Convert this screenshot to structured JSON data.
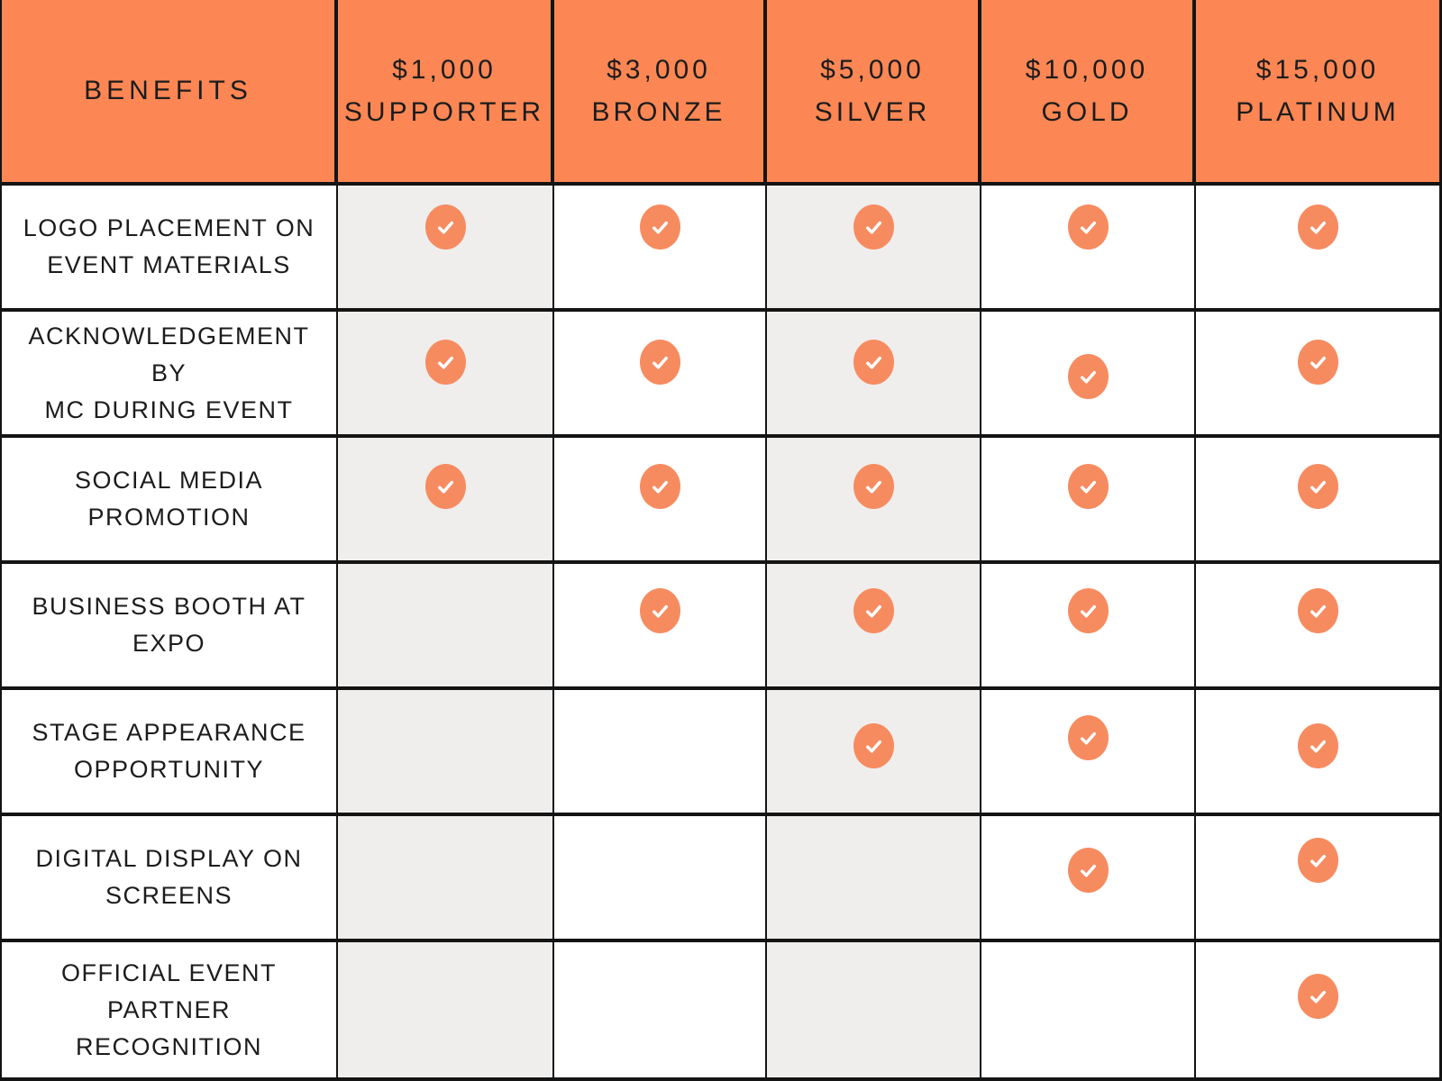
{
  "table": {
    "benefits_header": "BENEFITS",
    "tiers": [
      {
        "price": "$1,000",
        "name": "SUPPORTER",
        "shaded": true
      },
      {
        "price": "$3,000",
        "name": "BRONZE",
        "shaded": false
      },
      {
        "price": "$5,000",
        "name": "SILVER",
        "shaded": true
      },
      {
        "price": "$10,000",
        "name": "GOLD",
        "shaded": false
      },
      {
        "price": "$15,000",
        "name": "PLATINUM",
        "shaded": false
      }
    ],
    "rows": [
      {
        "label_lines": [
          "LOGO PLACEMENT ON",
          "EVENT MATERIALS"
        ],
        "included": [
          true,
          true,
          true,
          true,
          true
        ]
      },
      {
        "label_lines": [
          "ACKNOWLEDGEMENT BY",
          "MC DURING EVENT"
        ],
        "included": [
          true,
          true,
          true,
          true,
          true
        ]
      },
      {
        "label_lines": [
          "SOCIAL MEDIA",
          "PROMOTION"
        ],
        "included": [
          true,
          true,
          true,
          true,
          true
        ]
      },
      {
        "label_lines": [
          "BUSINESS BOOTH AT",
          "EXPO"
        ],
        "included": [
          false,
          true,
          true,
          true,
          true
        ]
      },
      {
        "label_lines": [
          "STAGE APPEARANCE",
          "OPPORTUNITY"
        ],
        "included": [
          false,
          false,
          true,
          true,
          true
        ]
      },
      {
        "label_lines": [
          "DIGITAL DISPLAY ON",
          "SCREENS"
        ],
        "included": [
          false,
          false,
          false,
          true,
          true
        ]
      },
      {
        "label_lines": [
          "OFFICIAL EVENT PARTNER",
          "RECOGNITION"
        ],
        "included": [
          false,
          false,
          false,
          false,
          true
        ]
      }
    ]
  },
  "icons": {
    "included_marker": "check-icon"
  },
  "colors": {
    "header_bg": "#FC8754",
    "check_fill": "#F78B60",
    "check_glyph": "#FFFFFF",
    "shaded_column": "#EFEEED",
    "border": "#141414",
    "text": "#1C1C1C"
  },
  "chart_data": {
    "type": "table",
    "title": "Sponsorship benefits comparison",
    "columns": [
      "BENEFITS",
      "$1,000 SUPPORTER",
      "$3,000 BRONZE",
      "$5,000 SILVER",
      "$10,000 GOLD",
      "$15,000 PLATINUM"
    ],
    "rows": [
      [
        "LOGO PLACEMENT ON EVENT MATERIALS",
        true,
        true,
        true,
        true,
        true
      ],
      [
        "ACKNOWLEDGEMENT BY MC DURING EVENT",
        true,
        true,
        true,
        true,
        true
      ],
      [
        "SOCIAL MEDIA PROMOTION",
        true,
        true,
        true,
        true,
        true
      ],
      [
        "BUSINESS BOOTH AT EXPO",
        false,
        true,
        true,
        true,
        true
      ],
      [
        "STAGE APPEARANCE OPPORTUNITY",
        false,
        false,
        true,
        true,
        true
      ],
      [
        "DIGITAL DISPLAY ON SCREENS",
        false,
        false,
        false,
        true,
        true
      ],
      [
        "OFFICIAL EVENT PARTNER RECOGNITION",
        false,
        false,
        false,
        false,
        true
      ]
    ],
    "legend_position": "none",
    "grid": true
  }
}
